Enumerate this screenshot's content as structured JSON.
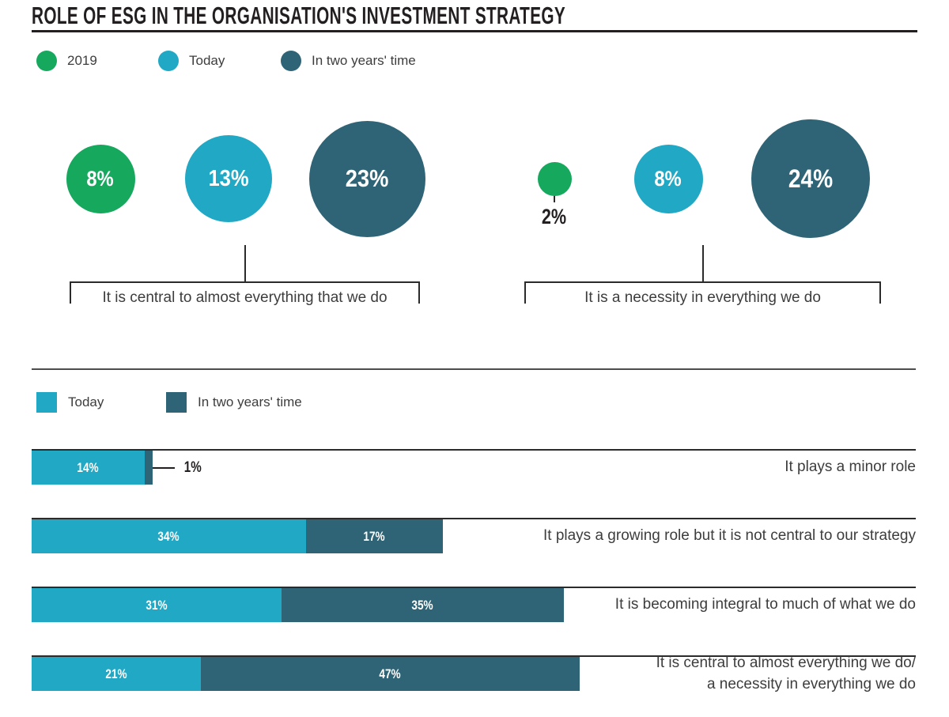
{
  "title": "ROLE OF ESG IN THE ORGANISATION'S INVESTMENT STRATEGY",
  "colors": {
    "green_2019": "#16a85c",
    "today": "#20a8c4",
    "in_two_years": "#2f6476",
    "ink": "#231f20",
    "text": "#3d3d3d"
  },
  "chart_data": [
    {
      "type": "bubble",
      "title": "ROLE OF ESG IN THE ORGANISATION'S INVESTMENT STRATEGY",
      "legend": [
        "2019",
        "Today",
        "In two years' time"
      ],
      "legend_colors": [
        "#16a85c",
        "#20a8c4",
        "#2f6476"
      ],
      "unit": "%",
      "groups": [
        {
          "label": "It is central to almost everything that we do",
          "series": [
            {
              "name": "2019",
              "value": 8
            },
            {
              "name": "Today",
              "value": 13
            },
            {
              "name": "In two years' time",
              "value": 23
            }
          ]
        },
        {
          "label": "It is a necessity in everything we do",
          "series": [
            {
              "name": "2019",
              "value": 2
            },
            {
              "name": "Today",
              "value": 8
            },
            {
              "name": "In two years' time",
              "value": 24
            }
          ]
        }
      ]
    },
    {
      "type": "bar",
      "orientation": "horizontal",
      "unit": "%",
      "legend": [
        "Today",
        "In two years' time"
      ],
      "legend_colors": [
        "#20a8c4",
        "#2f6476"
      ],
      "categories": [
        {
          "lines": [
            "It plays a minor role"
          ]
        },
        {
          "lines": [
            "It plays a growing role but it is not central to our strategy"
          ]
        },
        {
          "lines": [
            "It is becoming integral to much of what we do"
          ]
        },
        {
          "lines": [
            "It is central to almost everything we do/",
            "a necessity in everything we do"
          ]
        }
      ],
      "series": [
        {
          "name": "Today",
          "values": [
            14,
            34,
            31,
            21
          ]
        },
        {
          "name": "In two years' time",
          "values": [
            1,
            17,
            35,
            47
          ]
        }
      ]
    }
  ]
}
